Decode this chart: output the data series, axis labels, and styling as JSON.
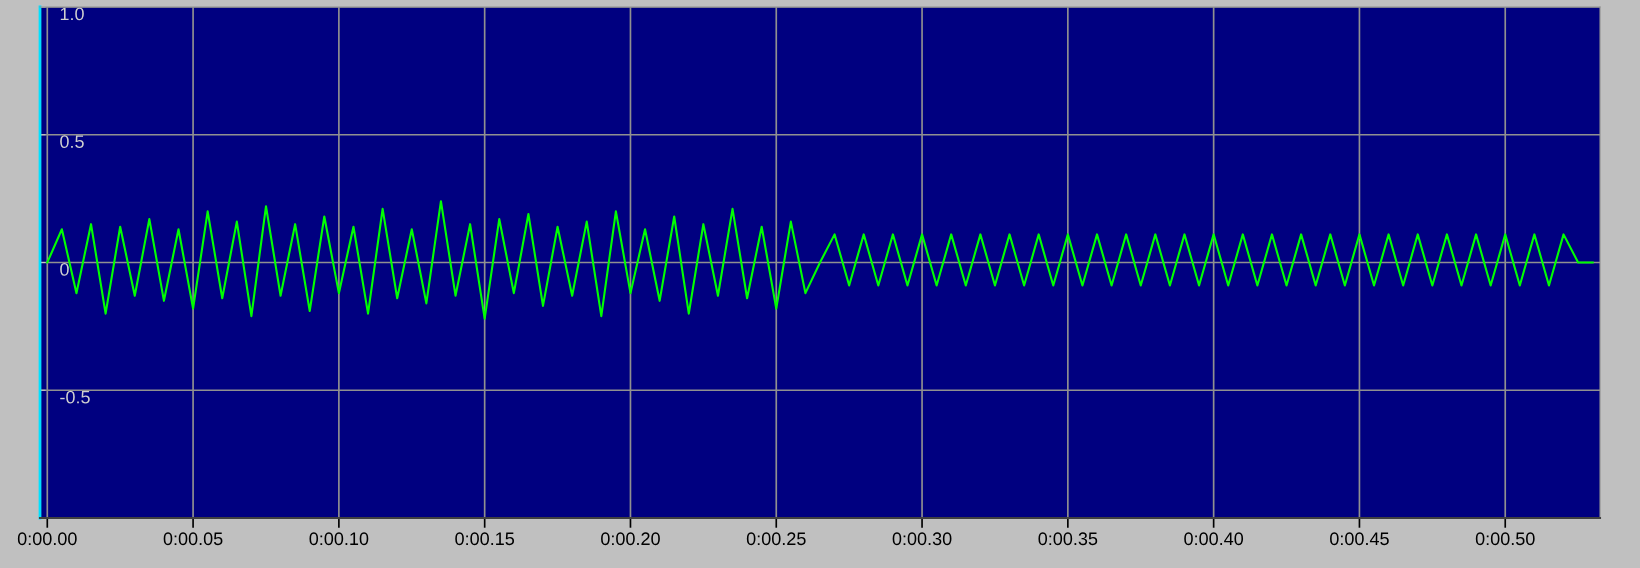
{
  "chart_data": {
    "type": "line",
    "categories": [
      "0:00.00",
      null,
      null,
      null,
      null,
      null,
      null,
      null,
      null,
      null,
      "0:00.05",
      null,
      null,
      null,
      null,
      null,
      null,
      null,
      null,
      null,
      "0:00.10",
      null,
      null,
      null,
      null,
      null,
      null,
      null,
      null,
      null,
      "0:00.15",
      null,
      null,
      null,
      null,
      null,
      null,
      null,
      null,
      null,
      "0:00.20",
      null,
      null,
      null,
      null,
      null,
      null,
      null,
      null,
      null,
      "0:00.25",
      null,
      null,
      null,
      null,
      null,
      null,
      null,
      null,
      null,
      "0:00.30",
      null,
      null,
      null,
      null,
      null,
      null,
      null,
      null,
      null,
      "0:00.35",
      null,
      null,
      null,
      null,
      null,
      null,
      null,
      null,
      null,
      "0:00.40",
      null,
      null,
      null,
      null,
      null,
      null,
      null,
      null,
      null,
      "0:00.45",
      null,
      null,
      null,
      null,
      null,
      null,
      null,
      null,
      null,
      "0:00.50",
      null,
      null,
      null,
      null,
      null,
      null
    ],
    "ylim": [
      -1,
      1
    ],
    "yticks": [
      {
        "value": -1,
        "label": null
      },
      -0.5,
      0,
      0.5,
      {
        "value": 1,
        "label": "1.0"
      }
    ],
    "grid": true,
    "series": [
      {
        "color": "#00ff00",
        "values": [
          0,
          0.13,
          -0.12,
          0.15,
          -0.2,
          0.14,
          -0.13,
          0.17,
          -0.15,
          0.13,
          -0.18,
          0.2,
          -0.14,
          0.16,
          -0.21,
          0.22,
          -0.13,
          0.15,
          -0.19,
          0.18,
          -0.12,
          0.14,
          -0.2,
          0.21,
          -0.14,
          0.13,
          -0.16,
          0.24,
          -0.13,
          0.15,
          -0.22,
          0.17,
          -0.12,
          0.19,
          -0.17,
          0.14,
          -0.13,
          0.16,
          -0.21,
          0.2,
          -0.12,
          0.13,
          -0.15,
          0.18,
          -0.2,
          0.15,
          -0.13,
          0.21,
          -0.14,
          0.14,
          -0.18,
          0.16,
          -0.12,
          0,
          0.11,
          -0.09,
          0.11,
          -0.09,
          0.11,
          -0.09,
          0.11,
          -0.09,
          0.11,
          -0.09,
          0.11,
          -0.09,
          0.11,
          -0.09,
          0.11,
          -0.09,
          0.11,
          -0.09,
          0.11,
          -0.09,
          0.11,
          -0.09,
          0.11,
          -0.09,
          0.11,
          -0.09,
          0.11,
          -0.09,
          0.11,
          -0.09,
          0.11,
          -0.09,
          0.11,
          -0.09,
          0.11,
          -0.09,
          0.11,
          -0.09,
          0.11,
          -0.09,
          0.11,
          -0.09,
          0.11,
          -0.09,
          0.11,
          -0.09,
          0.11,
          -0.09,
          0.11,
          -0.09,
          0.11,
          0,
          0
        ]
      }
    ]
  }
}
